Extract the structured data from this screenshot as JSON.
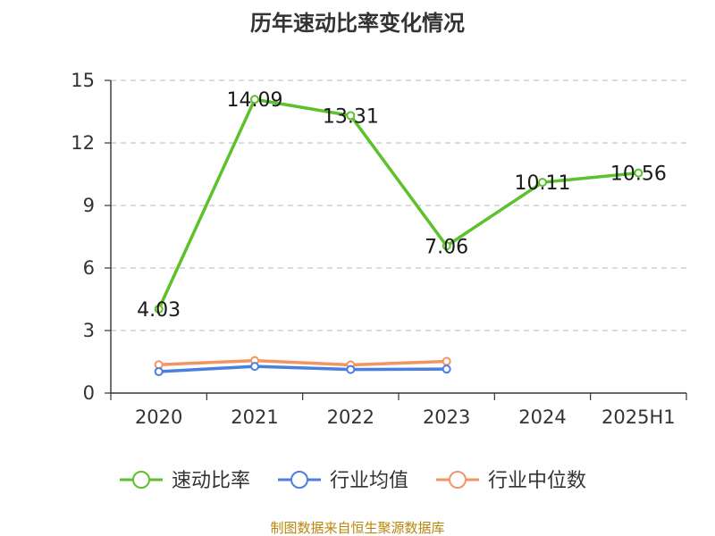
{
  "chart_data": {
    "type": "line",
    "title": "历年速动比率变化情况",
    "categories": [
      "2020",
      "2021",
      "2022",
      "2023",
      "2024",
      "2025H1"
    ],
    "ylim": [
      0,
      15
    ],
    "yticks": [
      0,
      3,
      6,
      9,
      12,
      15
    ],
    "grid": true,
    "legend_position": "bottom",
    "series": [
      {
        "name": "速动比率",
        "values": [
          4.03,
          14.09,
          13.31,
          7.06,
          10.11,
          10.56
        ],
        "color": "#5cc12a",
        "show_labels": true
      },
      {
        "name": "行业均值",
        "values": [
          1.03,
          1.28,
          1.13,
          1.15,
          null,
          null
        ],
        "color": "#4a7ee0",
        "show_labels": false
      },
      {
        "name": "行业中位数",
        "values": [
          1.36,
          1.56,
          1.35,
          1.52,
          null,
          null
        ],
        "color": "#f39463",
        "show_labels": false
      }
    ]
  },
  "source_text": "制图数据来自恒生聚源数据库"
}
